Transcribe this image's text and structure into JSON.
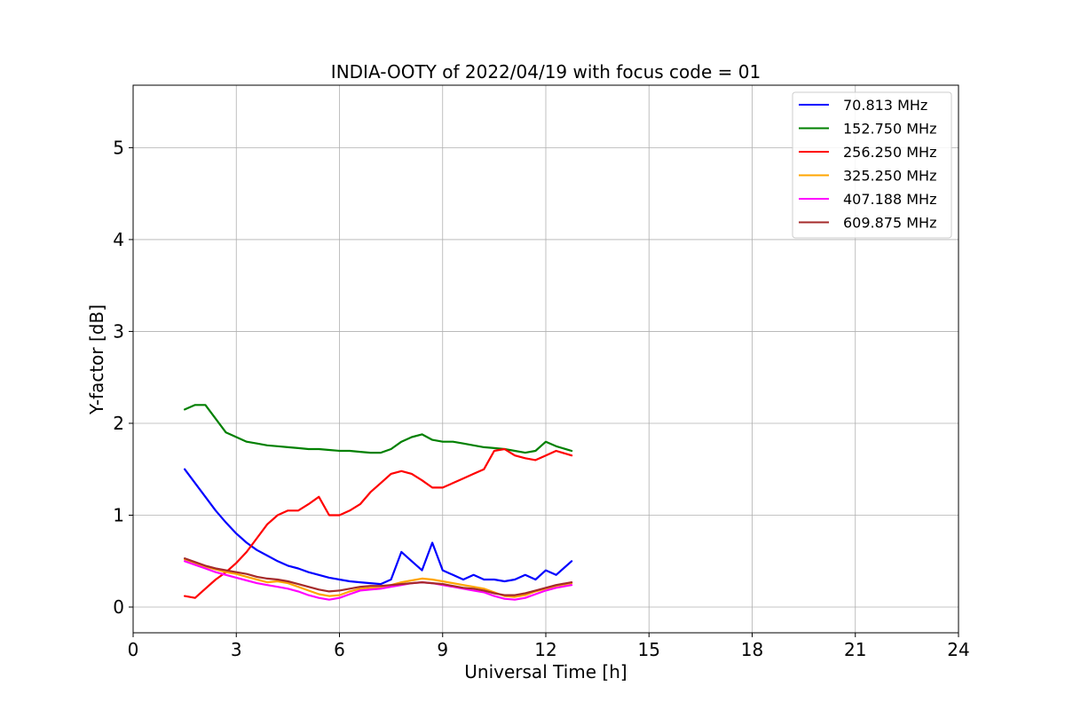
{
  "chart_data": {
    "type": "line",
    "title": "INDIA-OOTY of 2022/04/19 with focus code = 01",
    "xlabel": "Universal Time [h]",
    "ylabel": "Y-factor [dB]",
    "xlim": [
      0,
      24
    ],
    "ylim": [
      -0.28,
      5.68
    ],
    "xticks": [
      "0",
      "3",
      "6",
      "9",
      "12",
      "15",
      "18",
      "21",
      "24"
    ],
    "yticks": [
      "0",
      "1",
      "2",
      "3",
      "4",
      "5"
    ],
    "grid": true,
    "legend_position": "top-right",
    "series": [
      {
        "name": " 70.813 MHz",
        "color": "#0000ff",
        "x": [
          1.5,
          1.8,
          2.1,
          2.4,
          2.7,
          3.0,
          3.3,
          3.6,
          3.9,
          4.2,
          4.5,
          4.8,
          5.1,
          5.4,
          5.7,
          6.0,
          6.3,
          6.6,
          6.9,
          7.2,
          7.5,
          7.8,
          8.1,
          8.4,
          8.7,
          9.0,
          9.3,
          9.6,
          9.9,
          10.2,
          10.5,
          10.8,
          11.1,
          11.4,
          11.7,
          12.0,
          12.3,
          12.75
        ],
        "y": [
          1.5,
          1.35,
          1.2,
          1.05,
          0.92,
          0.8,
          0.7,
          0.62,
          0.56,
          0.5,
          0.45,
          0.42,
          0.38,
          0.35,
          0.32,
          0.3,
          0.28,
          0.27,
          0.26,
          0.25,
          0.3,
          0.6,
          0.5,
          0.4,
          0.7,
          0.4,
          0.35,
          0.3,
          0.35,
          0.3,
          0.3,
          0.28,
          0.3,
          0.35,
          0.3,
          0.4,
          0.35,
          0.5
        ]
      },
      {
        "name": "152.750 MHz",
        "color": "#008000",
        "x": [
          1.5,
          1.8,
          2.1,
          2.4,
          2.7,
          3.0,
          3.3,
          3.6,
          3.9,
          4.2,
          4.5,
          4.8,
          5.1,
          5.4,
          5.7,
          6.0,
          6.3,
          6.6,
          6.9,
          7.2,
          7.5,
          7.8,
          8.1,
          8.4,
          8.7,
          9.0,
          9.3,
          9.6,
          9.9,
          10.2,
          10.5,
          10.8,
          11.1,
          11.4,
          11.7,
          12.0,
          12.3,
          12.75
        ],
        "y": [
          2.15,
          2.2,
          2.2,
          2.05,
          1.9,
          1.85,
          1.8,
          1.78,
          1.76,
          1.75,
          1.74,
          1.73,
          1.72,
          1.72,
          1.71,
          1.7,
          1.7,
          1.69,
          1.68,
          1.68,
          1.72,
          1.8,
          1.85,
          1.88,
          1.82,
          1.8,
          1.8,
          1.78,
          1.76,
          1.74,
          1.73,
          1.72,
          1.7,
          1.68,
          1.7,
          1.8,
          1.75,
          1.7
        ]
      },
      {
        "name": "256.250 MHz",
        "color": "#ff0000",
        "x": [
          1.5,
          1.8,
          2.1,
          2.4,
          2.7,
          3.0,
          3.3,
          3.6,
          3.9,
          4.2,
          4.5,
          4.8,
          5.1,
          5.4,
          5.7,
          6.0,
          6.3,
          6.6,
          6.9,
          7.2,
          7.5,
          7.8,
          8.1,
          8.4,
          8.7,
          9.0,
          9.3,
          9.6,
          9.9,
          10.2,
          10.5,
          10.8,
          11.1,
          11.4,
          11.7,
          12.0,
          12.3,
          12.75
        ],
        "y": [
          0.12,
          0.1,
          0.2,
          0.3,
          0.38,
          0.48,
          0.6,
          0.75,
          0.9,
          1.0,
          1.05,
          1.05,
          1.12,
          1.2,
          1.0,
          1.0,
          1.05,
          1.12,
          1.25,
          1.35,
          1.45,
          1.48,
          1.45,
          1.38,
          1.3,
          1.3,
          1.35,
          1.4,
          1.45,
          1.5,
          1.7,
          1.72,
          1.65,
          1.62,
          1.6,
          1.65,
          1.7,
          1.65
        ]
      },
      {
        "name": "325.250 MHz",
        "color": "#ffa500",
        "x": [
          1.5,
          1.8,
          2.1,
          2.4,
          2.7,
          3.0,
          3.3,
          3.6,
          3.9,
          4.2,
          4.5,
          4.8,
          5.1,
          5.4,
          5.7,
          6.0,
          6.3,
          6.6,
          6.9,
          7.2,
          7.5,
          7.8,
          8.1,
          8.4,
          8.7,
          9.0,
          9.3,
          9.6,
          9.9,
          10.2,
          10.5,
          10.8,
          11.1,
          11.4,
          11.7,
          12.0,
          12.3,
          12.75
        ],
        "y": [
          0.52,
          0.48,
          0.44,
          0.41,
          0.38,
          0.36,
          0.33,
          0.3,
          0.27,
          0.28,
          0.26,
          0.22,
          0.18,
          0.14,
          0.12,
          0.13,
          0.17,
          0.2,
          0.21,
          0.21,
          0.24,
          0.27,
          0.29,
          0.31,
          0.3,
          0.28,
          0.26,
          0.24,
          0.22,
          0.2,
          0.16,
          0.12,
          0.11,
          0.13,
          0.17,
          0.2,
          0.23,
          0.26
        ]
      },
      {
        "name": "407.188 MHz",
        "color": "#ff00ff",
        "x": [
          1.5,
          1.8,
          2.1,
          2.4,
          2.7,
          3.0,
          3.3,
          3.6,
          3.9,
          4.2,
          4.5,
          4.8,
          5.1,
          5.4,
          5.7,
          6.0,
          6.3,
          6.6,
          6.9,
          7.2,
          7.5,
          7.8,
          8.1,
          8.4,
          8.7,
          9.0,
          9.3,
          9.6,
          9.9,
          10.2,
          10.5,
          10.8,
          11.1,
          11.4,
          11.7,
          12.0,
          12.3,
          12.75
        ],
        "y": [
          0.5,
          0.46,
          0.42,
          0.38,
          0.35,
          0.32,
          0.29,
          0.26,
          0.24,
          0.22,
          0.2,
          0.17,
          0.13,
          0.1,
          0.08,
          0.1,
          0.14,
          0.18,
          0.19,
          0.2,
          0.22,
          0.24,
          0.26,
          0.27,
          0.26,
          0.24,
          0.22,
          0.2,
          0.18,
          0.16,
          0.12,
          0.09,
          0.08,
          0.1,
          0.14,
          0.18,
          0.21,
          0.24
        ]
      },
      {
        "name": "609.875 MHz",
        "color": "#a52a2a",
        "x": [
          1.5,
          1.8,
          2.1,
          2.4,
          2.7,
          3.0,
          3.3,
          3.6,
          3.9,
          4.2,
          4.5,
          4.8,
          5.1,
          5.4,
          5.7,
          6.0,
          6.3,
          6.6,
          6.9,
          7.2,
          7.5,
          7.8,
          8.1,
          8.4,
          8.7,
          9.0,
          9.3,
          9.6,
          9.9,
          10.2,
          10.5,
          10.8,
          11.1,
          11.4,
          11.7,
          12.0,
          12.3,
          12.75
        ],
        "y": [
          0.53,
          0.49,
          0.45,
          0.42,
          0.4,
          0.38,
          0.36,
          0.33,
          0.31,
          0.3,
          0.28,
          0.25,
          0.22,
          0.19,
          0.17,
          0.18,
          0.2,
          0.22,
          0.23,
          0.23,
          0.24,
          0.25,
          0.26,
          0.27,
          0.26,
          0.25,
          0.23,
          0.21,
          0.2,
          0.18,
          0.15,
          0.13,
          0.13,
          0.15,
          0.18,
          0.21,
          0.24,
          0.27
        ]
      }
    ]
  }
}
